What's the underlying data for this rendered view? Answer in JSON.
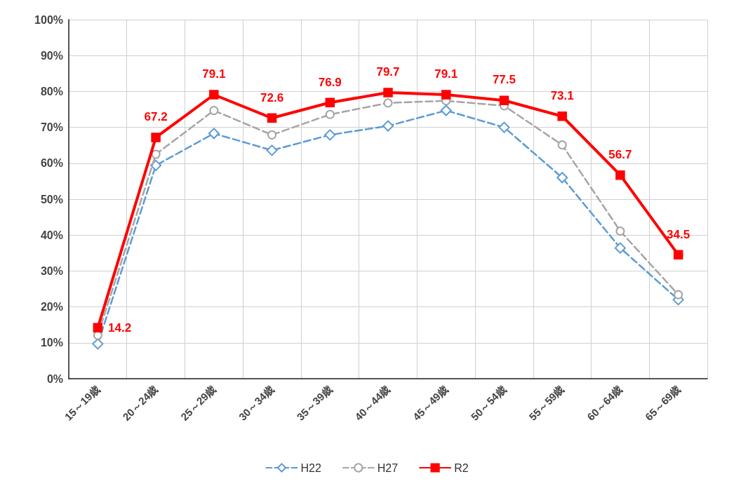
{
  "chart_data": {
    "type": "line",
    "categories": [
      "15～19歳",
      "20～24歳",
      "25～29歳",
      "30～34歳",
      "35～39歳",
      "40～44歳",
      "45～49歳",
      "50～54歳",
      "55～59歳",
      "60～64歳",
      "65～69歳"
    ],
    "series": [
      {
        "name": "H22",
        "color": "#5b9bd5",
        "marker": "diamond",
        "line_style": "dashed",
        "values": [
          9.7,
          59.4,
          68.3,
          63.6,
          67.9,
          70.4,
          74.7,
          70.0,
          56.0,
          36.4,
          22.0
        ]
      },
      {
        "name": "H27",
        "color": "#a5a5a5",
        "marker": "circle",
        "line_style": "dashed",
        "values": [
          12.1,
          62.5,
          74.7,
          67.9,
          73.6,
          76.8,
          77.4,
          76.0,
          65.1,
          41.1,
          23.4
        ]
      },
      {
        "name": "R2",
        "color": "#ff0000",
        "marker": "square",
        "line_style": "solid",
        "values": [
          14.2,
          67.2,
          79.1,
          72.6,
          76.9,
          79.7,
          79.1,
          77.5,
          73.1,
          56.7,
          34.5
        ],
        "value_labels": [
          "14.2",
          "67.2",
          "79.1",
          "72.6",
          "76.9",
          "79.7",
          "79.1",
          "77.5",
          "73.1",
          "56.7",
          "34.5"
        ]
      }
    ],
    "ylim": [
      0,
      100
    ],
    "yticks": [
      {
        "value": 0,
        "label": "0%"
      },
      {
        "value": 10,
        "label": "10%"
      },
      {
        "value": 20,
        "label": "20%"
      },
      {
        "value": 30,
        "label": "30%"
      },
      {
        "value": 40,
        "label": "40%"
      },
      {
        "value": 50,
        "label": "50%"
      },
      {
        "value": 60,
        "label": "60%"
      },
      {
        "value": 70,
        "label": "70%"
      },
      {
        "value": 80,
        "label": "80%"
      },
      {
        "value": 90,
        "label": "90%"
      },
      {
        "value": 100,
        "label": "100%"
      }
    ],
    "grid": true,
    "legend": "bottom"
  }
}
